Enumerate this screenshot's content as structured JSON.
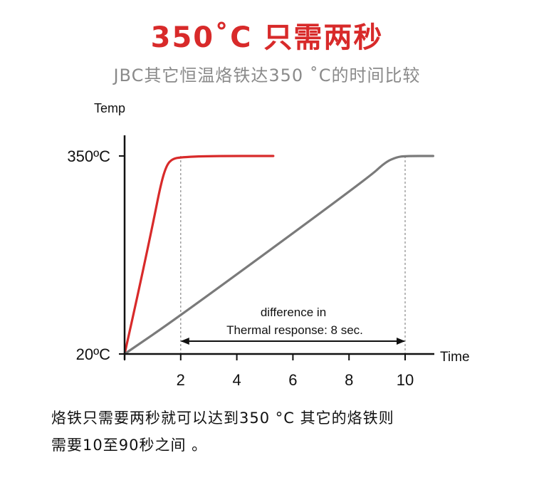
{
  "header": {
    "title": "350˚C 只需两秒",
    "subtitle": "JBC其它恒温烙铁达350 ˚C的时间比较"
  },
  "colors": {
    "jbc_series": "#d82a2a",
    "other_series": "#7a7a7a",
    "axis": "#111111",
    "guide": "#888888"
  },
  "chart_data": {
    "type": "line",
    "ylabel": "Temp",
    "xlabel": "Time",
    "x_ticks": [
      2,
      4,
      6,
      8,
      10
    ],
    "y_ticks": [
      {
        "value": 20,
        "label": "20ºC"
      },
      {
        "value": 350,
        "label": "350ºC"
      }
    ],
    "xlim": [
      0,
      11
    ],
    "ylim": [
      20,
      350
    ],
    "series": [
      {
        "color": "#d82a2a",
        "points": [
          [
            0,
            20
          ],
          [
            0.5,
            125
          ],
          [
            1.0,
            235
          ],
          [
            1.3,
            305
          ],
          [
            1.5,
            335
          ],
          [
            1.7,
            345
          ],
          [
            2.0,
            348
          ],
          [
            3.0,
            350
          ],
          [
            5.3,
            350
          ]
        ]
      },
      {
        "color": "#7a7a7a",
        "points": [
          [
            0,
            20
          ],
          [
            2.0,
            84
          ],
          [
            8.7,
            314
          ],
          [
            9.3,
            340
          ],
          [
            9.7,
            348
          ],
          [
            10.0,
            350
          ],
          [
            11.0,
            350
          ]
        ]
      }
    ],
    "annotations": {
      "guide_lines_x": [
        2,
        10
      ],
      "difference_text_line1": "difference in",
      "difference_text_line2": "Thermal response: 8 sec.",
      "arrow_from_x": 2,
      "arrow_to_x": 10
    }
  },
  "caption": {
    "line1": "烙铁只需要两秒就可以达到350 °C 其它的烙铁则",
    "line2": "需要10至90秒之间 。"
  }
}
